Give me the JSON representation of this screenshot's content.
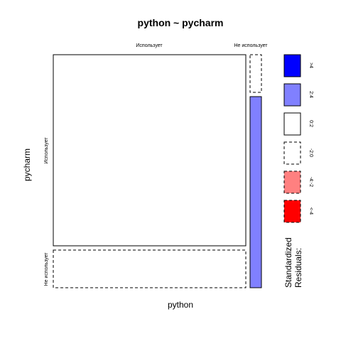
{
  "chart_data": {
    "type": "mosaic",
    "title": "python ~ pycharm",
    "xlabel": "python",
    "ylabel": "pycharm",
    "x_categories": [
      "Использует",
      "Не использует"
    ],
    "y_categories": [
      "Использует",
      "Не использует"
    ],
    "cells": [
      {
        "x": "Использует",
        "y": "Использует",
        "residual_band": "0:2",
        "fill": "#ffffff",
        "dashed": false
      },
      {
        "x": "Использует",
        "y": "Не использует",
        "residual_band": "-2:0",
        "fill": "#ffffff",
        "dashed": true
      },
      {
        "x": "Не использует",
        "y": "Использует",
        "residual_band": "-2:0",
        "fill": "#ffffff",
        "dashed": true
      },
      {
        "x": "Не использует",
        "y": "Не использует",
        "residual_band": "2:4",
        "fill": "#8080ff",
        "dashed": false
      }
    ],
    "x_proportions": [
      0.9545,
      0.0455
    ],
    "y_conditional_proportions": [
      [
        0.8205,
        0.1795
      ],
      [
        0.1724,
        0.8276
      ]
    ],
    "legend": {
      "title": "Standardized\nResiduals:",
      "title_lines": [
        "Standardized",
        "Residuals:"
      ],
      "placement": "right",
      "items": [
        {
          "label": ">4",
          "color": "#0000ff",
          "dashed": false
        },
        {
          "label": "2:4",
          "color": "#8080ff",
          "dashed": false
        },
        {
          "label": "0:2",
          "color": "#ffffff",
          "dashed": false
        },
        {
          "label": "-2:0",
          "color": "#ffffff",
          "dashed": true
        },
        {
          "label": "-4:-2",
          "color": "#ff8080",
          "dashed": true
        },
        {
          "label": "<-4",
          "color": "#ff0000",
          "dashed": true
        }
      ]
    }
  }
}
